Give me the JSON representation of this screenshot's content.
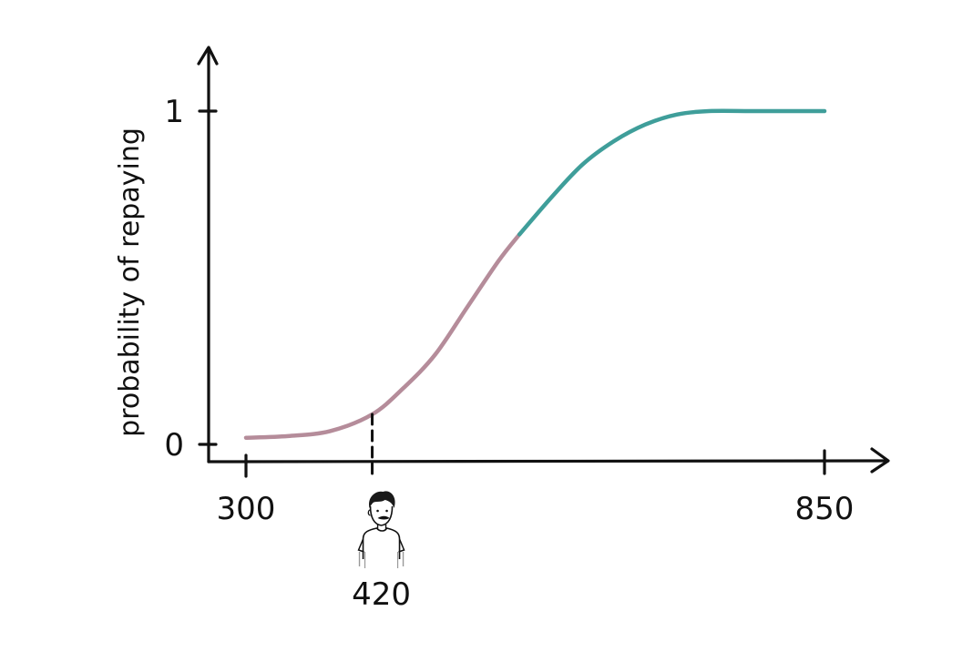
{
  "chart_data": {
    "type": "line",
    "title": "",
    "xlabel": "",
    "ylabel": "probability of repaying",
    "x_ticks": [
      "300",
      "850"
    ],
    "y_ticks": [
      "0",
      "1"
    ],
    "xlim": [
      300,
      850
    ],
    "ylim": [
      0,
      1
    ],
    "grid": false,
    "legend": "none",
    "marker": {
      "x": 420,
      "label": "420",
      "icon": "person-icon"
    },
    "threshold_x": 560,
    "colors": {
      "low": "#b58c9a",
      "high": "#3f9e9a",
      "axis": "#111111"
    },
    "series": [
      {
        "x": [
          300,
          340,
          380,
          420,
          450,
          480,
          510,
          540,
          560,
          590,
          620,
          650,
          680,
          710,
          740,
          780,
          820,
          850
        ],
        "y": [
          0.02,
          0.025,
          0.04,
          0.09,
          0.17,
          0.27,
          0.41,
          0.55,
          0.63,
          0.74,
          0.84,
          0.91,
          0.96,
          0.99,
          1.0,
          1.0,
          1.0,
          1.0
        ]
      }
    ]
  }
}
